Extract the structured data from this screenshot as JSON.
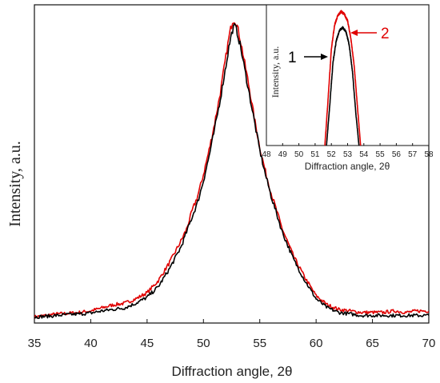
{
  "chart_data": [
    {
      "type": "line",
      "title": "",
      "xlabel": "Diffraction angle, 2θ",
      "ylabel": "Intensity, a.u.",
      "xlim": [
        35,
        70
      ],
      "xticks": [
        "35",
        "40",
        "45",
        "50",
        "55",
        "60",
        "65",
        "70"
      ],
      "ylim": [
        0,
        1.05
      ],
      "yticks_shown": false,
      "series": [
        {
          "color": "#e00000",
          "x": [
            35,
            36,
            37,
            38,
            39,
            40,
            41,
            42,
            43,
            44,
            45,
            46,
            47,
            48,
            48.5,
            49,
            49.5,
            50,
            50.5,
            51,
            51.5,
            52,
            52.3,
            52.6,
            52.8,
            53,
            53.3,
            53.6,
            54,
            54.5,
            55,
            55.5,
            56,
            56.5,
            57,
            58,
            59,
            60,
            61,
            62,
            63,
            64,
            65,
            66,
            67,
            68,
            69,
            70
          ],
          "y": [
            0.02,
            0.025,
            0.03,
            0.032,
            0.035,
            0.04,
            0.05,
            0.06,
            0.065,
            0.08,
            0.1,
            0.14,
            0.2,
            0.27,
            0.31,
            0.37,
            0.42,
            0.49,
            0.57,
            0.66,
            0.76,
            0.88,
            0.95,
            1.0,
            1.0,
            0.98,
            0.93,
            0.87,
            0.79,
            0.68,
            0.58,
            0.5,
            0.43,
            0.37,
            0.31,
            0.22,
            0.15,
            0.09,
            0.06,
            0.045,
            0.04,
            0.035,
            0.035,
            0.035,
            0.04,
            0.035,
            0.04,
            0.04
          ]
        },
        {
          "color": "#000000",
          "x": [
            35,
            36,
            37,
            38,
            39,
            40,
            41,
            42,
            43,
            44,
            45,
            46,
            47,
            48,
            48.5,
            49,
            49.5,
            50,
            50.5,
            51,
            51.5,
            52,
            52.3,
            52.6,
            52.8,
            53,
            53.3,
            53.6,
            54,
            54.5,
            55,
            55.5,
            56,
            56.5,
            57,
            58,
            59,
            60,
            61,
            62,
            63,
            64,
            65,
            66,
            67,
            68,
            69,
            70
          ],
          "y": [
            0.02,
            0.022,
            0.025,
            0.028,
            0.03,
            0.033,
            0.04,
            0.045,
            0.05,
            0.065,
            0.085,
            0.12,
            0.18,
            0.25,
            0.3,
            0.35,
            0.4,
            0.47,
            0.55,
            0.64,
            0.74,
            0.85,
            0.92,
            0.97,
            0.98,
            0.96,
            0.91,
            0.85,
            0.77,
            0.67,
            0.57,
            0.49,
            0.42,
            0.36,
            0.3,
            0.21,
            0.14,
            0.08,
            0.05,
            0.035,
            0.03,
            0.025,
            0.025,
            0.025,
            0.025,
            0.025,
            0.025,
            0.025
          ]
        }
      ]
    },
    {
      "type": "line",
      "title": "",
      "xlabel": "Diffraction angle, 2θ",
      "ylabel": "Intensity, a.u.",
      "xlim": [
        48,
        58
      ],
      "xticks": [
        "48",
        "49",
        "50",
        "51",
        "52",
        "53",
        "54",
        "55",
        "56",
        "57",
        "58"
      ],
      "ylim": [
        0,
        1.05
      ],
      "series": [
        {
          "color": "#e00000",
          "x": [
            51.6,
            51.8,
            52.0,
            52.2,
            52.4,
            52.6,
            52.8,
            53.0,
            53.2,
            53.4,
            53.6,
            53.8
          ],
          "y": [
            0.0,
            0.35,
            0.72,
            0.9,
            0.97,
            1.0,
            0.98,
            0.93,
            0.8,
            0.6,
            0.3,
            0.0
          ]
        },
        {
          "color": "#000000",
          "x": [
            51.7,
            51.9,
            52.1,
            52.3,
            52.5,
            52.7,
            52.9,
            53.1,
            53.3,
            53.5,
            53.7
          ],
          "y": [
            0.0,
            0.3,
            0.62,
            0.78,
            0.86,
            0.88,
            0.85,
            0.75,
            0.55,
            0.25,
            0.0
          ]
        }
      ],
      "annotations": [
        {
          "label": "1",
          "color": "#000000"
        },
        {
          "label": "2",
          "color": "#e00000"
        }
      ]
    }
  ]
}
